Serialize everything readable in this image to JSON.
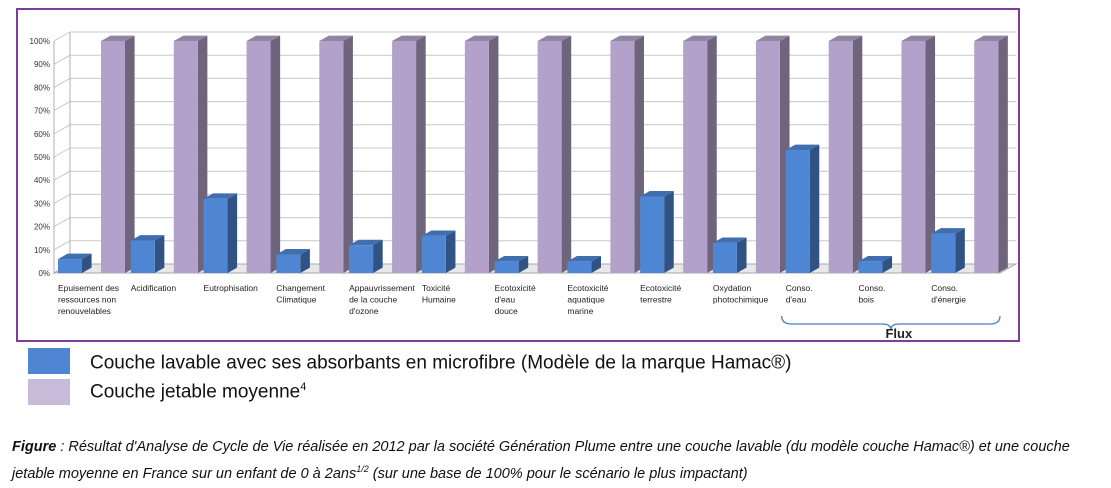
{
  "chart_data": {
    "type": "bar",
    "categories": [
      "Epuisement des ressources non renouvelables",
      "Acidification",
      "Eutrophisation",
      "Changement Climatique",
      "Appauvrissement de la couche d'ozone",
      "Toxicité Humaine",
      "Ecotoxicité d'eau douce",
      "Ecotoxicité aquatique marine",
      "Ecotoxicité terrestre",
      "Oxydation photochimique",
      "Conso. d'eau",
      "Conso. bois",
      "Conso. d'énergie"
    ],
    "category_lines": [
      [
        "Epuisement des",
        "ressources non",
        "renouvelables"
      ],
      [
        "Acidification"
      ],
      [
        "Eutrophisation"
      ],
      [
        "Changement",
        "Climatique"
      ],
      [
        "Appauvrissement",
        "de la couche",
        "d'ozone"
      ],
      [
        "Toxicité",
        "Humaine"
      ],
      [
        "Ecotoxicité",
        "d'eau",
        "douce"
      ],
      [
        "Ecotoxicité",
        "aquatique",
        "marine"
      ],
      [
        "Ecotoxicité",
        "terrestre"
      ],
      [
        "Oxydation",
        "photochimique"
      ],
      [
        "Conso.",
        "d'eau"
      ],
      [
        "Conso.",
        "bois"
      ],
      [
        "Conso.",
        "d'énergie"
      ]
    ],
    "series": [
      {
        "name": "Couche lavable avec ses absorbants en microfibre (Modèle de la marque Hamac®)",
        "color": "#4f86d4",
        "values": [
          6,
          14,
          32,
          8,
          12,
          16,
          5,
          5,
          33,
          13,
          53,
          5,
          17
        ]
      },
      {
        "name": "Couche jetable moyenne",
        "color": "#b2a1c8",
        "values": [
          100,
          100,
          100,
          100,
          100,
          100,
          100,
          100,
          100,
          100,
          100,
          100,
          100
        ]
      }
    ],
    "yticks": [
      "0%",
      "10%",
      "20%",
      "30%",
      "40%",
      "50%",
      "60%",
      "70%",
      "80%",
      "90%",
      "100%"
    ],
    "ylim": [
      0,
      100
    ],
    "grid": true,
    "bracket_label": "Flux",
    "bracket_categories": [
      10,
      12
    ]
  },
  "legend": {
    "items": [
      {
        "label": "Couche lavable avec ses absorbants en microfibre (Modèle de la marque Hamac®)",
        "sup": "",
        "color": "#4f86d4"
      },
      {
        "label": "Couche jetable moyenne",
        "sup": "4",
        "color": "#c8bbd9"
      }
    ]
  },
  "caption": {
    "lead": "Figure",
    "text": " : Résultat d'Analyse de Cycle de Vie réalisée en 2012 par la société Génération Plume entre une couche lavable (du modèle couche Hamac®) et une couche jetable moyenne en France sur un enfant de 0 à 2ans",
    "sup": "1/2",
    "tail": " (sur une base de 100% pour le  scénario le plus impactant)"
  }
}
